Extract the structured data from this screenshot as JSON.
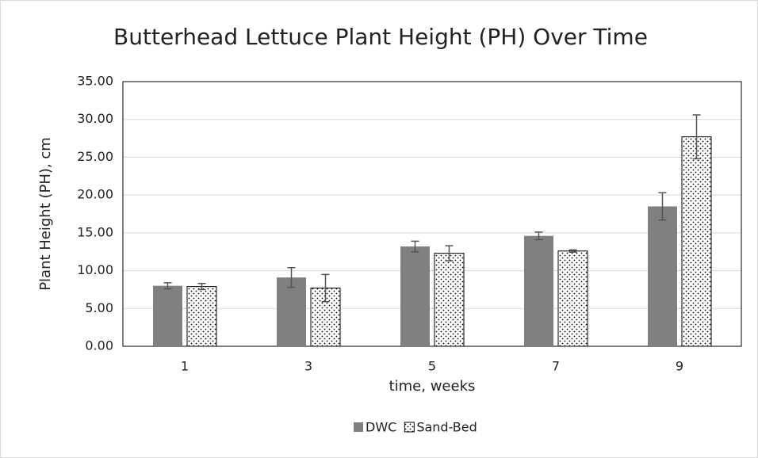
{
  "chart_data": {
    "type": "bar",
    "title": "Butterhead Lettuce Plant Height (PH) Over Time",
    "x_label": "time, weeks",
    "y_label": "Plant Height (PH), cm",
    "categories": [
      "1",
      "3",
      "5",
      "7",
      "9"
    ],
    "series": [
      {
        "name": "DWC",
        "color": "#808080",
        "values": [
          8.0,
          9.1,
          13.2,
          14.6,
          18.5
        ],
        "errors": [
          0.4,
          1.3,
          0.7,
          0.5,
          1.8
        ]
      },
      {
        "name": "Sand-Bed",
        "color": "#ffffff",
        "pattern": "dots",
        "values": [
          7.9,
          7.7,
          12.3,
          12.6,
          27.7
        ],
        "errors": [
          0.4,
          1.8,
          1.0,
          0.15,
          2.9
        ]
      }
    ],
    "ylim": [
      0,
      35
    ],
    "yticks": [
      {
        "value": 0,
        "label": "0.00"
      },
      {
        "value": 5,
        "label": "5.00"
      },
      {
        "value": 10,
        "label": "10.00"
      },
      {
        "value": 15,
        "label": "15.00"
      },
      {
        "value": 20,
        "label": "20.00"
      },
      {
        "value": 25,
        "label": "25.00"
      },
      {
        "value": 30,
        "label": "30.00"
      },
      {
        "value": 35,
        "label": "35.00"
      }
    ],
    "grid": true,
    "legend": "bottom"
  }
}
